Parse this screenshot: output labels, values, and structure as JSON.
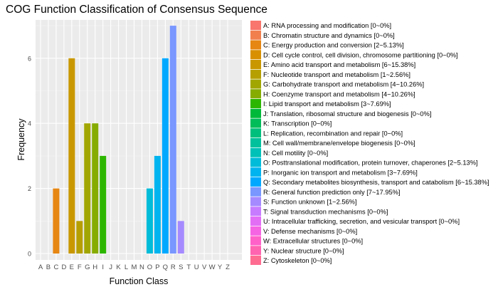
{
  "chart_data": {
    "type": "bar",
    "title": "COG Function Classification of Consensus Sequence",
    "xlabel": "Function Class",
    "ylabel": "Frequency",
    "ylim": [
      0,
      7.3
    ],
    "yticks": [
      0,
      2,
      4,
      6
    ],
    "grid": true,
    "legend_placement": "right",
    "categories": [
      "A",
      "B",
      "C",
      "D",
      "E",
      "F",
      "G",
      "H",
      "I",
      "J",
      "K",
      "L",
      "M",
      "N",
      "O",
      "P",
      "Q",
      "R",
      "S",
      "T",
      "U",
      "V",
      "W",
      "Y",
      "Z"
    ],
    "values": [
      0,
      0,
      2,
      0,
      6,
      1,
      4,
      4,
      3,
      0,
      0,
      0,
      0,
      0,
      2,
      3,
      6,
      7,
      1,
      0,
      0,
      0,
      0,
      0,
      0
    ],
    "colors": [
      "#F8766D",
      "#F17F4E",
      "#E68613",
      "#D89000",
      "#C99800",
      "#B69F00",
      "#A2A600",
      "#86AC00",
      "#2DB600",
      "#00B93A",
      "#00BC59",
      "#00BF7D",
      "#00C19C",
      "#00C1B7",
      "#00BCD8",
      "#00B4EF",
      "#00A9FF",
      "#7997FF",
      "#A58AFF",
      "#C77CFF",
      "#E36EF6",
      "#F564E3",
      "#FF61C9",
      "#FF64B0",
      "#FF6C91"
    ],
    "legend": [
      "A: RNA processing and modification [0~0%]",
      "B: Chromatin structure and dynamics [0~0%]",
      "C: Energy production and conversion [2~5.13%]",
      "D: Cell cycle control, cell division, chromosome partitioning [0~0%]",
      "E: Amino acid transport and metabolism [6~15.38%]",
      "F: Nucleotide transport and metabolism [1~2.56%]",
      "G: Carbohydrate transport and metabolism [4~10.26%]",
      "H: Coenzyme transport and metabolism [4~10.26%]",
      "I: Lipid transport and metabolism [3~7.69%]",
      "J: Translation, ribosomal structure and biogenesis [0~0%]",
      "K: Transcription [0~0%]",
      "L: Replication, recombination and repair [0~0%]",
      "M: Cell wall/membrane/envelope biogenesis [0~0%]",
      "N: Cell motility [0~0%]",
      "O: Posttranslational modification, protein turnover, chaperones [2~5.13%]",
      "P: Inorganic ion transport and metabolism [3~7.69%]",
      "Q: Secondary metabolites biosynthesis, transport and catabolism [6~15.38%]",
      "R: General function prediction only [7~17.95%]",
      "S: Function unknown [1~2.56%]",
      "T: Signal transduction mechanisms [0~0%]",
      "U: Intracellular trafficking, secretion, and vesicular transport [0~0%]",
      "V: Defense mechanisms [0~0%]",
      "W: Extracellular structures [0~0%]",
      "Y: Nuclear structure [0~0%]",
      "Z: Cytoskeleton [0~0%]"
    ]
  }
}
